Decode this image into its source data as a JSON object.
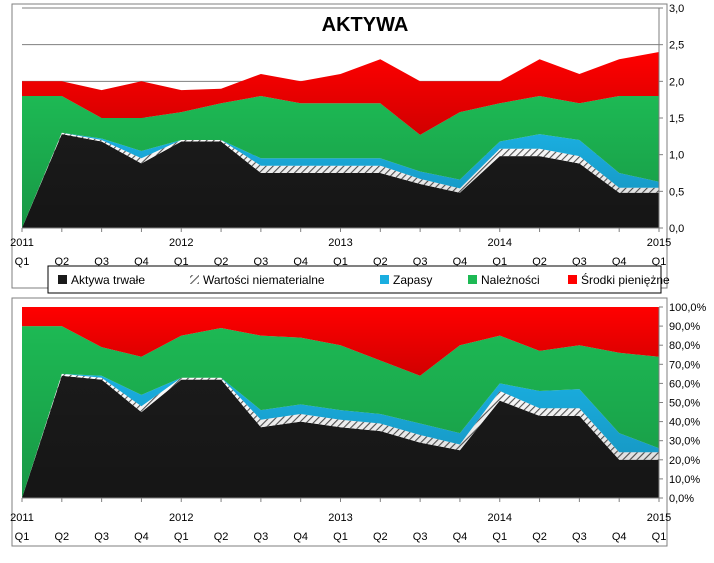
{
  "chart_data": [
    {
      "type": "area",
      "stacked": true,
      "title": "AKTYWA",
      "y_axis_side": "right",
      "ylim": [
        0,
        3
      ],
      "ytick_labels": [
        "0,0",
        "0,5",
        "1,0",
        "1,5",
        "2,0",
        "2,5",
        "3,0"
      ],
      "grid": "horizontal",
      "x_labels": [
        {
          "year": "2011",
          "q": "Q1"
        },
        {
          "year": "",
          "q": "Q2"
        },
        {
          "year": "",
          "q": "Q3"
        },
        {
          "year": "",
          "q": "Q4"
        },
        {
          "year": "2012",
          "q": "Q1"
        },
        {
          "year": "",
          "q": "Q2"
        },
        {
          "year": "",
          "q": "Q3"
        },
        {
          "year": "",
          "q": "Q4"
        },
        {
          "year": "2013",
          "q": "Q1"
        },
        {
          "year": "",
          "q": "Q2"
        },
        {
          "year": "",
          "q": "Q3"
        },
        {
          "year": "",
          "q": "Q4"
        },
        {
          "year": "2014",
          "q": "Q1"
        },
        {
          "year": "",
          "q": "Q2"
        },
        {
          "year": "",
          "q": "Q3"
        },
        {
          "year": "",
          "q": "Q4"
        },
        {
          "year": "2015",
          "q": "Q1"
        }
      ],
      "series": [
        {
          "name": "Aktywa trwałe",
          "color": "#1a1a1a",
          "values": [
            0,
            1.28,
            1.18,
            0.88,
            1.18,
            1.18,
            0.75,
            0.75,
            0.75,
            0.75,
            0.6,
            0.48,
            0.98,
            0.98,
            0.88,
            0.48,
            0.48
          ]
        },
        {
          "name": "Wartości niematerialne",
          "color": "#e8e8e8",
          "values": [
            0,
            0.02,
            0.02,
            0.07,
            0.02,
            0.02,
            0.1,
            0.1,
            0.1,
            0.1,
            0.07,
            0.06,
            0.1,
            0.1,
            0.1,
            0.07,
            0.07
          ]
        },
        {
          "name": "Zapasy",
          "color": "#1aaee0",
          "values": [
            0,
            0,
            0.02,
            0.1,
            0,
            0,
            0.1,
            0.1,
            0.1,
            0.1,
            0.1,
            0.12,
            0.1,
            0.2,
            0.22,
            0.2,
            0.08
          ]
        },
        {
          "name": "Należności",
          "color": "#1db954",
          "values": [
            1.8,
            0.5,
            0.28,
            0.45,
            0.38,
            0.5,
            0.85,
            0.75,
            0.75,
            0.75,
            0.5,
            0.92,
            0.52,
            0.52,
            0.5,
            1.05,
            1.17
          ]
        },
        {
          "name": "Środki pieniężne",
          "color": "#ff0000",
          "values": [
            0.2,
            0.2,
            0.38,
            0.5,
            0.3,
            0.2,
            0.3,
            0.3,
            0.4,
            0.6,
            0.73,
            0.42,
            0.3,
            0.5,
            0.4,
            0.5,
            0.6
          ]
        }
      ]
    },
    {
      "type": "area",
      "stacked": true,
      "title": "",
      "y_axis_side": "right",
      "ylim": [
        0,
        100
      ],
      "ytick_labels": [
        "0,0%",
        "10,0%",
        "20,0%",
        "30,0%",
        "40,0%",
        "50,0%",
        "60,0%",
        "70,0%",
        "80,0%",
        "90,0%",
        "100,0%"
      ],
      "grid": "none",
      "x_labels": [
        {
          "year": "2011",
          "q": "Q1"
        },
        {
          "year": "",
          "q": "Q2"
        },
        {
          "year": "",
          "q": "Q3"
        },
        {
          "year": "",
          "q": "Q4"
        },
        {
          "year": "2012",
          "q": "Q1"
        },
        {
          "year": "",
          "q": "Q2"
        },
        {
          "year": "",
          "q": "Q3"
        },
        {
          "year": "",
          "q": "Q4"
        },
        {
          "year": "2013",
          "q": "Q1"
        },
        {
          "year": "",
          "q": "Q2"
        },
        {
          "year": "",
          "q": "Q3"
        },
        {
          "year": "",
          "q": "Q4"
        },
        {
          "year": "2014",
          "q": "Q1"
        },
        {
          "year": "",
          "q": "Q2"
        },
        {
          "year": "",
          "q": "Q3"
        },
        {
          "year": "",
          "q": "Q4"
        },
        {
          "year": "2015",
          "q": "Q1"
        }
      ],
      "series": [
        {
          "name": "Aktywa trwałe",
          "color": "#1a1a1a",
          "values": [
            0,
            64,
            62,
            45,
            62,
            62,
            37,
            40,
            37,
            35,
            29,
            25,
            51,
            43,
            43,
            20,
            20
          ]
        },
        {
          "name": "Wartości niematerialne",
          "color": "#e8e8e8",
          "values": [
            0,
            1,
            1,
            3,
            1,
            1,
            4,
            4,
            4,
            4,
            4,
            3,
            5,
            4,
            4,
            4,
            4
          ]
        },
        {
          "name": "Zapasy",
          "color": "#1aaee0",
          "values": [
            0,
            0,
            1,
            6,
            0,
            0,
            5,
            5,
            5,
            5,
            6,
            6,
            4,
            9,
            10,
            10,
            2
          ]
        },
        {
          "name": "Należności",
          "color": "#1db954",
          "values": [
            90,
            25,
            15,
            20,
            22,
            26,
            39,
            35,
            34,
            28,
            25,
            46,
            25,
            21,
            23,
            42,
            48
          ]
        },
        {
          "name": "Środki pieniężne",
          "color": "#ff0000",
          "values": [
            10,
            10,
            21,
            26,
            15,
            11,
            15,
            16,
            20,
            28,
            36,
            20,
            15,
            23,
            20,
            24,
            26
          ]
        }
      ]
    }
  ],
  "legend": [
    {
      "label": "Aktywa trwałe",
      "color": "#1a1a1a",
      "pattern": "solid"
    },
    {
      "label": "Wartości niematerialne",
      "color": "#e8e8e8",
      "pattern": "hatch"
    },
    {
      "label": "Zapasy",
      "color": "#1aaee0",
      "pattern": "solid"
    },
    {
      "label": "Należności",
      "color": "#1db954",
      "pattern": "solid"
    },
    {
      "label": "Środki pieniężne",
      "color": "#ff0000",
      "pattern": "solid"
    }
  ]
}
